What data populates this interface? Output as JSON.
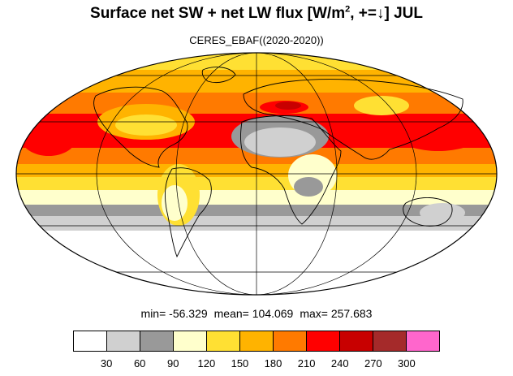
{
  "title": {
    "main": "Surface net SW + net LW flux [W/m",
    "sup": "2",
    "rest": ", +=↓]  JUL"
  },
  "subtitle": "CERES_EBAF((2020-2020))",
  "stats": {
    "min": "min= -56.329",
    "mean": "mean= 104.069",
    "max": "max= 257.683"
  },
  "colorbar": {
    "colors": [
      "#ffffff",
      "#d0d0d0",
      "#999999",
      "#ffffcc",
      "#ffe033",
      "#ffb300",
      "#ff7a00",
      "#ff0000",
      "#c80000",
      "#a52a2a",
      "#ff66cc"
    ],
    "labels": [
      "30",
      "60",
      "90",
      "120",
      "150",
      "180",
      "210",
      "240",
      "270",
      "300"
    ]
  }
}
